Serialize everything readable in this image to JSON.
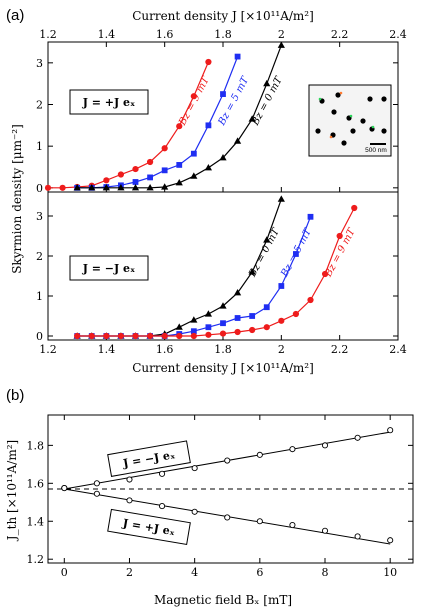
{
  "panel_labels": {
    "a": "(a)",
    "b": "(b)"
  },
  "colors": {
    "red": "#ee1c1c",
    "blue": "#1f2ef2",
    "black": "#000000"
  },
  "chart_data": [
    {
      "type": "line",
      "panel": "(a) top",
      "xlabel": "Current density J [×10¹¹A/m²]",
      "ylabel": "Skyrmion density [μm⁻²]",
      "xlim": [
        1.2,
        2.4
      ],
      "ylim": [
        -0.1,
        3.5
      ],
      "xticks": [
        "1.2",
        "1.4",
        "1.6",
        "1.8",
        "2",
        "2.2",
        "2.4"
      ],
      "yticks": [
        "0",
        "1",
        "2",
        "3"
      ],
      "box_label": "J = +J eₓ",
      "inset_scale_text": "500 nm",
      "series": [
        {
          "name": "Bz = 9 mT",
          "color": "#ee1c1c",
          "marker": "circle",
          "x": [
            1.2,
            1.25,
            1.3,
            1.35,
            1.4,
            1.45,
            1.5,
            1.55,
            1.6,
            1.65,
            1.7,
            1.75
          ],
          "y": [
            0.0,
            0.0,
            0.02,
            0.05,
            0.18,
            0.32,
            0.45,
            0.62,
            0.95,
            1.48,
            2.2,
            3.02
          ]
        },
        {
          "name": "Bz = 5 mT",
          "color": "#1f2ef2",
          "marker": "square",
          "x": [
            1.3,
            1.35,
            1.4,
            1.45,
            1.5,
            1.55,
            1.6,
            1.65,
            1.7,
            1.75,
            1.8,
            1.85
          ],
          "y": [
            0.0,
            0.0,
            0.02,
            0.06,
            0.14,
            0.25,
            0.42,
            0.55,
            0.82,
            1.5,
            2.25,
            3.15
          ]
        },
        {
          "name": "Bz = 0 mT",
          "color": "#000000",
          "marker": "triangle",
          "x": [
            1.3,
            1.35,
            1.4,
            1.45,
            1.5,
            1.55,
            1.6,
            1.65,
            1.7,
            1.75,
            1.8,
            1.85,
            1.9,
            1.95,
            2.0
          ],
          "y": [
            0.0,
            0.0,
            0.0,
            0.0,
            0.0,
            0.0,
            0.02,
            0.12,
            0.28,
            0.48,
            0.72,
            1.12,
            1.65,
            2.5,
            3.42
          ]
        }
      ]
    },
    {
      "type": "line",
      "panel": "(a) bottom",
      "xlabel": "Current density J [×10¹¹A/m²]",
      "xlim": [
        1.2,
        2.4
      ],
      "ylim": [
        -0.1,
        3.6
      ],
      "xticks": [
        "1.2",
        "1.4",
        "1.6",
        "1.8",
        "2",
        "2.2",
        "2.4"
      ],
      "yticks": [
        "0",
        "1",
        "2",
        "3"
      ],
      "box_label": "J = −J eₓ",
      "series": [
        {
          "name": "Bz = 0 mT",
          "color": "#000000",
          "marker": "triangle",
          "x": [
            1.3,
            1.35,
            1.4,
            1.45,
            1.5,
            1.55,
            1.6,
            1.65,
            1.7,
            1.75,
            1.8,
            1.85,
            1.9,
            1.95,
            2.0
          ],
          "y": [
            0.0,
            0.0,
            0.0,
            0.0,
            0.0,
            0.0,
            0.05,
            0.22,
            0.4,
            0.55,
            0.75,
            1.08,
            1.6,
            2.4,
            3.42
          ]
        },
        {
          "name": "Bz = 5 mT",
          "color": "#1f2ef2",
          "marker": "square",
          "x": [
            1.3,
            1.35,
            1.4,
            1.45,
            1.5,
            1.55,
            1.6,
            1.65,
            1.7,
            1.75,
            1.8,
            1.85,
            1.9,
            1.95,
            2.0,
            2.05,
            2.1
          ],
          "y": [
            0.0,
            0.0,
            0.0,
            0.0,
            0.0,
            0.0,
            0.0,
            0.05,
            0.12,
            0.22,
            0.32,
            0.45,
            0.5,
            0.72,
            1.25,
            2.05,
            2.98
          ]
        },
        {
          "name": "Bz = 9 mT",
          "color": "#ee1c1c",
          "marker": "circle",
          "x": [
            1.3,
            1.35,
            1.4,
            1.45,
            1.5,
            1.55,
            1.6,
            1.65,
            1.7,
            1.75,
            1.8,
            1.85,
            1.9,
            1.95,
            2.0,
            2.05,
            2.1,
            2.15,
            2.2,
            2.25
          ],
          "y": [
            0.0,
            0.0,
            0.0,
            0.0,
            0.0,
            0.0,
            0.0,
            0.0,
            0.0,
            0.03,
            0.06,
            0.1,
            0.15,
            0.22,
            0.38,
            0.55,
            0.9,
            1.55,
            2.5,
            3.2
          ]
        }
      ]
    },
    {
      "type": "scatter",
      "panel": "(b)",
      "xlabel": "Magnetic field Bₓ [mT]",
      "ylabel": "J_th [×10¹¹A/m²]",
      "xlim": [
        -0.5,
        10.7
      ],
      "ylim": [
        1.18,
        1.96
      ],
      "xticks": [
        "0",
        "2",
        "4",
        "6",
        "8",
        "10"
      ],
      "yticks": [
        "1.2",
        "1.4",
        "1.6",
        "1.8"
      ],
      "dashed_line_y": 1.57,
      "upper_box_label": "J = −J eₓ",
      "lower_box_label": "J = +J eₓ",
      "series": [
        {
          "name": "J = −J eₓ",
          "marker": "open-circle",
          "x": [
            0,
            1,
            2,
            3,
            4,
            5,
            6,
            7,
            8,
            9,
            10
          ],
          "y": [
            1.575,
            1.6,
            1.62,
            1.65,
            1.68,
            1.72,
            1.75,
            1.78,
            1.8,
            1.84,
            1.88
          ],
          "fit": [
            [
              0,
              1.57
            ],
            [
              10,
              1.87
            ]
          ]
        },
        {
          "name": "J = +J eₓ",
          "marker": "open-circle",
          "x": [
            0,
            1,
            2,
            3,
            4,
            5,
            6,
            7,
            8,
            9,
            10
          ],
          "y": [
            1.575,
            1.545,
            1.51,
            1.48,
            1.45,
            1.42,
            1.4,
            1.38,
            1.35,
            1.32,
            1.3
          ],
          "fit": [
            [
              0,
              1.57
            ],
            [
              10,
              1.28
            ]
          ]
        }
      ]
    }
  ]
}
